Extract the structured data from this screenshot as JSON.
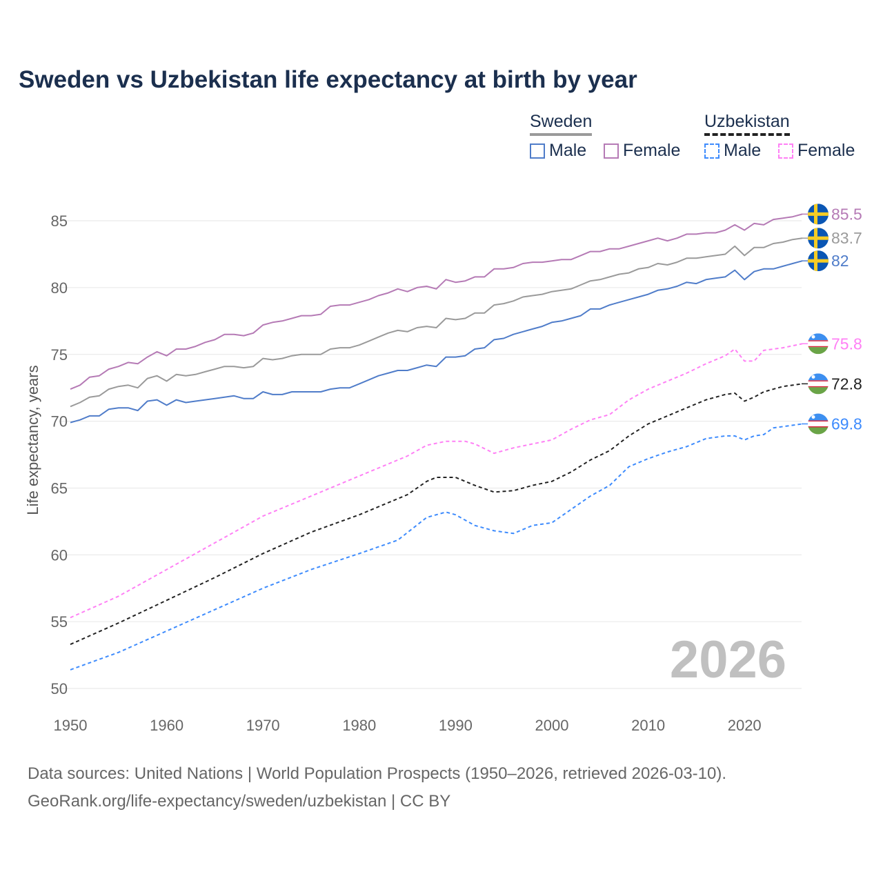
{
  "chart_data": {
    "type": "line",
    "title": "Sweden vs Uzbekistan life expectancy at birth by year",
    "xlabel": "",
    "ylabel": "Life expectancy, years",
    "xlim": [
      1950,
      2026
    ],
    "ylim": [
      50,
      86
    ],
    "xticks": [
      1950,
      1960,
      1970,
      1980,
      1990,
      2000,
      2010,
      2020
    ],
    "yticks": [
      50,
      55,
      60,
      65,
      70,
      75,
      80,
      85
    ],
    "grid": true,
    "watermark_year": "2026",
    "legend": {
      "placement": "top-right",
      "groups": [
        {
          "name": "Sweden",
          "items": [
            "Male",
            "Female"
          ]
        },
        {
          "name": "Uzbekistan",
          "items": [
            "Male",
            "Female"
          ]
        }
      ]
    },
    "series": [
      {
        "name": "Sweden Female",
        "country": "sweden",
        "color": "#b57ab5",
        "dash": false,
        "end_label": "85.5",
        "x": [
          1950,
          1951,
          1952,
          1953,
          1954,
          1955,
          1956,
          1957,
          1958,
          1959,
          1960,
          1961,
          1962,
          1963,
          1964,
          1965,
          1966,
          1967,
          1968,
          1969,
          1970,
          1971,
          1972,
          1973,
          1974,
          1975,
          1976,
          1977,
          1978,
          1979,
          1980,
          1981,
          1982,
          1983,
          1984,
          1985,
          1986,
          1987,
          1988,
          1989,
          1990,
          1991,
          1992,
          1993,
          1994,
          1995,
          1996,
          1997,
          1998,
          1999,
          2000,
          2001,
          2002,
          2003,
          2004,
          2005,
          2006,
          2007,
          2008,
          2009,
          2010,
          2011,
          2012,
          2013,
          2014,
          2015,
          2016,
          2017,
          2018,
          2019,
          2020,
          2021,
          2022,
          2023,
          2024,
          2025,
          2026
        ],
        "y": [
          72.4,
          72.7,
          73.3,
          73.4,
          73.9,
          74.1,
          74.4,
          74.3,
          74.8,
          75.2,
          74.9,
          75.4,
          75.4,
          75.6,
          75.9,
          76.1,
          76.5,
          76.5,
          76.4,
          76.6,
          77.2,
          77.4,
          77.5,
          77.7,
          77.9,
          77.9,
          78.0,
          78.6,
          78.7,
          78.7,
          78.9,
          79.1,
          79.4,
          79.6,
          79.9,
          79.7,
          80.0,
          80.1,
          79.9,
          80.6,
          80.4,
          80.5,
          80.8,
          80.8,
          81.4,
          81.4,
          81.5,
          81.8,
          81.9,
          81.9,
          82.0,
          82.1,
          82.1,
          82.4,
          82.7,
          82.7,
          82.9,
          82.9,
          83.1,
          83.3,
          83.5,
          83.7,
          83.5,
          83.7,
          84.0,
          84.0,
          84.1,
          84.1,
          84.3,
          84.7,
          84.3,
          84.8,
          84.7,
          85.1,
          85.2,
          85.3,
          85.5
        ]
      },
      {
        "name": "Sweden Total",
        "country": "sweden",
        "color": "#9a9a9a",
        "dash": false,
        "end_label": "83.7",
        "x": [
          1950,
          1951,
          1952,
          1953,
          1954,
          1955,
          1956,
          1957,
          1958,
          1959,
          1960,
          1961,
          1962,
          1963,
          1964,
          1965,
          1966,
          1967,
          1968,
          1969,
          1970,
          1971,
          1972,
          1973,
          1974,
          1975,
          1976,
          1977,
          1978,
          1979,
          1980,
          1981,
          1982,
          1983,
          1984,
          1985,
          1986,
          1987,
          1988,
          1989,
          1990,
          1991,
          1992,
          1993,
          1994,
          1995,
          1996,
          1997,
          1998,
          1999,
          2000,
          2001,
          2002,
          2003,
          2004,
          2005,
          2006,
          2007,
          2008,
          2009,
          2010,
          2011,
          2012,
          2013,
          2014,
          2015,
          2016,
          2017,
          2018,
          2019,
          2020,
          2021,
          2022,
          2023,
          2024,
          2025,
          2026
        ],
        "y": [
          71.1,
          71.4,
          71.8,
          71.9,
          72.4,
          72.6,
          72.7,
          72.5,
          73.2,
          73.4,
          73.0,
          73.5,
          73.4,
          73.5,
          73.7,
          73.9,
          74.1,
          74.1,
          74.0,
          74.1,
          74.7,
          74.6,
          74.7,
          74.9,
          75.0,
          75.0,
          75.0,
          75.4,
          75.5,
          75.5,
          75.7,
          76.0,
          76.3,
          76.6,
          76.8,
          76.7,
          77.0,
          77.1,
          77.0,
          77.7,
          77.6,
          77.7,
          78.1,
          78.1,
          78.7,
          78.8,
          79.0,
          79.3,
          79.4,
          79.5,
          79.7,
          79.8,
          79.9,
          80.2,
          80.5,
          80.6,
          80.8,
          81.0,
          81.1,
          81.4,
          81.5,
          81.8,
          81.7,
          81.9,
          82.2,
          82.2,
          82.3,
          82.4,
          82.5,
          83.1,
          82.4,
          83.0,
          83.0,
          83.3,
          83.4,
          83.6,
          83.7
        ]
      },
      {
        "name": "Sweden Male",
        "country": "sweden",
        "color": "#4f7cc9",
        "dash": false,
        "end_label": "82",
        "x": [
          1950,
          1951,
          1952,
          1953,
          1954,
          1955,
          1956,
          1957,
          1958,
          1959,
          1960,
          1961,
          1962,
          1963,
          1964,
          1965,
          1966,
          1967,
          1968,
          1969,
          1970,
          1971,
          1972,
          1973,
          1974,
          1975,
          1976,
          1977,
          1978,
          1979,
          1980,
          1981,
          1982,
          1983,
          1984,
          1985,
          1986,
          1987,
          1988,
          1989,
          1990,
          1991,
          1992,
          1993,
          1994,
          1995,
          1996,
          1997,
          1998,
          1999,
          2000,
          2001,
          2002,
          2003,
          2004,
          2005,
          2006,
          2007,
          2008,
          2009,
          2010,
          2011,
          2012,
          2013,
          2014,
          2015,
          2016,
          2017,
          2018,
          2019,
          2020,
          2021,
          2022,
          2023,
          2024,
          2025,
          2026
        ],
        "y": [
          69.9,
          70.1,
          70.4,
          70.4,
          70.9,
          71.0,
          71.0,
          70.8,
          71.5,
          71.6,
          71.2,
          71.6,
          71.4,
          71.5,
          71.6,
          71.7,
          71.8,
          71.9,
          71.7,
          71.7,
          72.2,
          72.0,
          72.0,
          72.2,
          72.2,
          72.2,
          72.2,
          72.4,
          72.5,
          72.5,
          72.8,
          73.1,
          73.4,
          73.6,
          73.8,
          73.8,
          74.0,
          74.2,
          74.1,
          74.8,
          74.8,
          74.9,
          75.4,
          75.5,
          76.1,
          76.2,
          76.5,
          76.7,
          76.9,
          77.1,
          77.4,
          77.5,
          77.7,
          77.9,
          78.4,
          78.4,
          78.7,
          78.9,
          79.1,
          79.3,
          79.5,
          79.8,
          79.9,
          80.1,
          80.4,
          80.3,
          80.6,
          80.7,
          80.8,
          81.3,
          80.6,
          81.2,
          81.4,
          81.4,
          81.6,
          81.8,
          82.0
        ]
      },
      {
        "name": "Uzbekistan Female",
        "country": "uzbekistan",
        "color": "#ff80f5",
        "dash": true,
        "end_label": "75.8",
        "x": [
          1950,
          1955,
          1960,
          1965,
          1970,
          1975,
          1980,
          1985,
          1987,
          1989,
          1991,
          1992,
          1994,
          1996,
          1998,
          2000,
          2002,
          2004,
          2006,
          2008,
          2010,
          2012,
          2014,
          2016,
          2018,
          2019,
          2020,
          2021,
          2022,
          2024,
          2026
        ],
        "y": [
          55.3,
          56.9,
          58.9,
          60.9,
          62.9,
          64.4,
          65.9,
          67.4,
          68.2,
          68.5,
          68.5,
          68.3,
          67.6,
          68.0,
          68.3,
          68.6,
          69.4,
          70.1,
          70.5,
          71.6,
          72.4,
          73.0,
          73.6,
          74.3,
          74.9,
          75.4,
          74.5,
          74.5,
          75.3,
          75.5,
          75.8
        ]
      },
      {
        "name": "Uzbekistan Total",
        "country": "uzbekistan",
        "color": "#222222",
        "dash": true,
        "end_label": "72.8",
        "x": [
          1950,
          1955,
          1960,
          1965,
          1970,
          1975,
          1980,
          1985,
          1987,
          1988,
          1990,
          1992,
          1994,
          1996,
          1998,
          2000,
          2002,
          2004,
          2006,
          2008,
          2010,
          2012,
          2014,
          2016,
          2018,
          2019,
          2020,
          2021,
          2022,
          2024,
          2026
        ],
        "y": [
          53.3,
          54.9,
          56.6,
          58.3,
          60.1,
          61.7,
          63.0,
          64.5,
          65.5,
          65.8,
          65.8,
          65.2,
          64.7,
          64.8,
          65.2,
          65.5,
          66.2,
          67.1,
          67.8,
          68.9,
          69.8,
          70.4,
          71.0,
          71.6,
          72.0,
          72.1,
          71.5,
          71.8,
          72.2,
          72.6,
          72.8
        ]
      },
      {
        "name": "Uzbekistan Male",
        "country": "uzbekistan",
        "color": "#3d8bfd",
        "dash": true,
        "end_label": "69.8",
        "x": [
          1950,
          1955,
          1960,
          1965,
          1970,
          1975,
          1980,
          1984,
          1987,
          1989,
          1990,
          1992,
          1994,
          1996,
          1998,
          2000,
          2002,
          2004,
          2006,
          2008,
          2010,
          2012,
          2014,
          2016,
          2018,
          2019,
          2020,
          2021,
          2022,
          2023,
          2026
        ],
        "y": [
          51.4,
          52.7,
          54.3,
          55.9,
          57.5,
          58.9,
          60.1,
          61.1,
          62.8,
          63.2,
          63.0,
          62.2,
          61.8,
          61.6,
          62.2,
          62.4,
          63.4,
          64.4,
          65.2,
          66.6,
          67.2,
          67.7,
          68.1,
          68.7,
          68.9,
          68.9,
          68.6,
          68.9,
          69.0,
          69.5,
          69.8
        ]
      }
    ]
  },
  "source": {
    "line1": "Data sources: United Nations | World Population Prospects (1950–2026, retrieved 2026-03-10).",
    "line2": "GeoRank.org/life-expectancy/sweden/uzbekistan | CC BY"
  },
  "colors": {
    "title": "#1b2f4e",
    "sweden_flag_blue": "#0a56b4",
    "sweden_flag_yellow": "#f6cc25",
    "uz_blue": "#3d8ff0",
    "uz_green": "#6aa447",
    "uz_red": "#d8253c"
  }
}
